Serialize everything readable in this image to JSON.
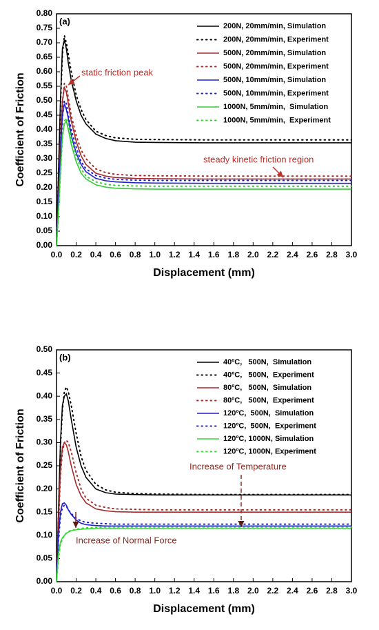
{
  "chart_data": [
    {
      "type": "line",
      "panel_label": "(a)",
      "x_label": "Displacement (mm)",
      "y_label": "Coefficient of Friction",
      "xlim": [
        0,
        3
      ],
      "ylim": [
        0,
        0.8
      ],
      "xticks": [
        {
          "value": 0,
          "label": "0.0"
        },
        {
          "value": 0.2,
          "label": "0.2"
        },
        {
          "value": 0.4,
          "label": "0.4"
        },
        {
          "value": 0.6,
          "label": "0.6"
        },
        {
          "value": 0.8,
          "label": "0.8"
        },
        {
          "value": 1,
          "label": "1.0"
        },
        {
          "value": 1.2,
          "label": "1.2"
        },
        {
          "value": 1.4,
          "label": "1.4"
        },
        {
          "value": 1.6,
          "label": "1.6"
        },
        {
          "value": 1.8,
          "label": "1.8"
        },
        {
          "value": 2,
          "label": "2.0"
        },
        {
          "value": 2.2,
          "label": "2.2"
        },
        {
          "value": 2.4,
          "label": "2.4"
        },
        {
          "value": 2.6,
          "label": "2.6"
        },
        {
          "value": 2.8,
          "label": "2.8"
        },
        {
          "value": 3,
          "label": "3.0"
        }
      ],
      "yticks": [
        {
          "value": 0,
          "label": "0.00"
        },
        {
          "value": 0.05,
          "label": "0.05"
        },
        {
          "value": 0.1,
          "label": "0.10"
        },
        {
          "value": 0.15,
          "label": "0.15"
        },
        {
          "value": 0.2,
          "label": "0.20"
        },
        {
          "value": 0.25,
          "label": "0.25"
        },
        {
          "value": 0.3,
          "label": "0.30"
        },
        {
          "value": 0.35,
          "label": "0.35"
        },
        {
          "value": 0.4,
          "label": "0.40"
        },
        {
          "value": 0.45,
          "label": "0.45"
        },
        {
          "value": 0.5,
          "label": "0.50"
        },
        {
          "value": 0.55,
          "label": "0.55"
        },
        {
          "value": 0.6,
          "label": "0.60"
        },
        {
          "value": 0.65,
          "label": "0.65"
        },
        {
          "value": 0.7,
          "label": "0.70"
        },
        {
          "value": 0.75,
          "label": "0.75"
        },
        {
          "value": 0.8,
          "label": "0.80"
        }
      ],
      "legend": "upper right",
      "x": [
        0,
        0.02,
        0.04,
        0.06,
        0.08,
        0.1,
        0.12,
        0.15,
        0.2,
        0.25,
        0.3,
        0.4,
        0.5,
        0.6,
        0.8,
        1.0,
        1.5,
        2.0,
        2.5,
        3.0
      ],
      "series": [
        {
          "name": "200N, 20mm/min, Simulation",
          "color": "#000000",
          "style": "solid",
          "values": [
            0,
            0.25,
            0.5,
            0.68,
            0.71,
            0.68,
            0.63,
            0.57,
            0.5,
            0.45,
            0.42,
            0.385,
            0.37,
            0.362,
            0.357,
            0.356,
            0.355,
            0.355,
            0.355,
            0.355
          ]
        },
        {
          "name": "200N, 20mm/min, Experiment",
          "color": "#000000",
          "style": "dotted",
          "values": [
            0,
            0.24,
            0.48,
            0.66,
            0.725,
            0.7,
            0.66,
            0.6,
            0.52,
            0.47,
            0.435,
            0.395,
            0.38,
            0.372,
            0.367,
            0.366,
            0.365,
            0.365,
            0.365,
            0.365
          ]
        },
        {
          "name": "500N, 20mm/min, Simulation",
          "color": "#a52a2a",
          "style": "solid",
          "values": [
            0,
            0.18,
            0.36,
            0.5,
            0.545,
            0.53,
            0.49,
            0.43,
            0.36,
            0.31,
            0.28,
            0.25,
            0.24,
            0.235,
            0.232,
            0.231,
            0.23,
            0.23,
            0.23,
            0.23
          ]
        },
        {
          "name": "500N, 20mm/min, Experiment",
          "color": "#a52a2a",
          "style": "dotted",
          "values": [
            0,
            0.17,
            0.35,
            0.49,
            0.56,
            0.55,
            0.51,
            0.45,
            0.38,
            0.33,
            0.3,
            0.265,
            0.252,
            0.246,
            0.242,
            0.241,
            0.24,
            0.24,
            0.24,
            0.24
          ]
        },
        {
          "name": "500N, 10mm/min, Simulation",
          "color": "#1f1fcf",
          "style": "solid",
          "values": [
            0,
            0.16,
            0.32,
            0.45,
            0.49,
            0.47,
            0.44,
            0.38,
            0.32,
            0.28,
            0.255,
            0.232,
            0.224,
            0.22,
            0.217,
            0.216,
            0.215,
            0.215,
            0.215,
            0.215
          ]
        },
        {
          "name": "500N, 10mm/min, Experiment",
          "color": "#1f1fcf",
          "style": "dotted",
          "values": [
            0,
            0.15,
            0.31,
            0.44,
            0.5,
            0.49,
            0.45,
            0.4,
            0.34,
            0.29,
            0.265,
            0.242,
            0.233,
            0.229,
            0.226,
            0.225,
            0.225,
            0.225,
            0.225,
            0.225
          ]
        },
        {
          "name": "1000N, 5mm/min,  Simulation",
          "color": "#33cc33",
          "style": "solid",
          "values": [
            0,
            0.12,
            0.26,
            0.38,
            0.42,
            0.43,
            0.4,
            0.35,
            0.29,
            0.25,
            0.23,
            0.21,
            0.202,
            0.198,
            0.196,
            0.195,
            0.195,
            0.195,
            0.195,
            0.195
          ]
        },
        {
          "name": "1000N, 5mm/min,  Experiment",
          "color": "#33cc33",
          "style": "dotted",
          "values": [
            0,
            0.11,
            0.25,
            0.37,
            0.43,
            0.44,
            0.42,
            0.37,
            0.31,
            0.265,
            0.24,
            0.22,
            0.212,
            0.208,
            0.206,
            0.205,
            0.205,
            0.205,
            0.205,
            0.205
          ]
        }
      ],
      "annotations": [
        {
          "text": "static friction peak",
          "color": "#c0302a"
        },
        {
          "text": "steady kinetic friction region",
          "color": "#c0302a"
        }
      ]
    },
    {
      "type": "line",
      "panel_label": "(b)",
      "x_label": "Displacement (mm)",
      "y_label": "Coefficient of Friction",
      "xlim": [
        0,
        3
      ],
      "ylim": [
        0,
        0.5
      ],
      "xticks": [
        {
          "value": 0,
          "label": "0.0"
        },
        {
          "value": 0.2,
          "label": "0.2"
        },
        {
          "value": 0.4,
          "label": "0.4"
        },
        {
          "value": 0.6,
          "label": "0.6"
        },
        {
          "value": 0.8,
          "label": "0.8"
        },
        {
          "value": 1,
          "label": "1.0"
        },
        {
          "value": 1.2,
          "label": "1.2"
        },
        {
          "value": 1.4,
          "label": "1.4"
        },
        {
          "value": 1.6,
          "label": "1.6"
        },
        {
          "value": 1.8,
          "label": "1.8"
        },
        {
          "value": 2,
          "label": "2.0"
        },
        {
          "value": 2.2,
          "label": "2.2"
        },
        {
          "value": 2.4,
          "label": "2.4"
        },
        {
          "value": 2.6,
          "label": "2.6"
        },
        {
          "value": 2.8,
          "label": "2.8"
        },
        {
          "value": 3,
          "label": "3.0"
        }
      ],
      "yticks": [
        {
          "value": 0,
          "label": "0.00"
        },
        {
          "value": 0.05,
          "label": "0.05"
        },
        {
          "value": 0.1,
          "label": "0.10"
        },
        {
          "value": 0.15,
          "label": "0.15"
        },
        {
          "value": 0.2,
          "label": "0.20"
        },
        {
          "value": 0.25,
          "label": "0.25"
        },
        {
          "value": 0.3,
          "label": "0.30"
        },
        {
          "value": 0.35,
          "label": "0.35"
        },
        {
          "value": 0.4,
          "label": "0.40"
        },
        {
          "value": 0.45,
          "label": "0.45"
        },
        {
          "value": 0.5,
          "label": "0.50"
        }
      ],
      "legend": "upper right",
      "x": [
        0,
        0.02,
        0.04,
        0.06,
        0.08,
        0.1,
        0.12,
        0.15,
        0.2,
        0.25,
        0.3,
        0.4,
        0.5,
        0.6,
        0.8,
        1.0,
        1.5,
        2.0,
        2.5,
        3.0
      ],
      "series": [
        {
          "name": "40ºC,   500N,  Simulation",
          "color": "#000000",
          "style": "solid",
          "values": [
            0,
            0.15,
            0.3,
            0.38,
            0.4,
            0.405,
            0.39,
            0.35,
            0.29,
            0.25,
            0.225,
            0.2,
            0.192,
            0.189,
            0.188,
            0.187,
            0.187,
            0.187,
            0.187,
            0.187
          ]
        },
        {
          "name": "40ºC,   500N,  Experiment",
          "color": "#000000",
          "style": "dotted",
          "values": [
            0,
            0.14,
            0.29,
            0.37,
            0.41,
            0.42,
            0.41,
            0.38,
            0.32,
            0.27,
            0.24,
            0.21,
            0.198,
            0.193,
            0.19,
            0.189,
            0.188,
            0.188,
            0.188,
            0.188
          ]
        },
        {
          "name": "80ºC,   500N,  Simulation",
          "color": "#a52a2a",
          "style": "solid",
          "values": [
            0,
            0.13,
            0.24,
            0.29,
            0.3,
            0.295,
            0.28,
            0.25,
            0.21,
            0.185,
            0.17,
            0.157,
            0.153,
            0.151,
            0.15,
            0.15,
            0.15,
            0.15,
            0.15,
            0.15
          ]
        },
        {
          "name": "80ºC,   500N,  Experiment",
          "color": "#a52a2a",
          "style": "dotted",
          "values": [
            0,
            0.12,
            0.23,
            0.28,
            0.3,
            0.305,
            0.3,
            0.28,
            0.235,
            0.2,
            0.18,
            0.165,
            0.16,
            0.157,
            0.156,
            0.155,
            0.155,
            0.155,
            0.155,
            0.155
          ]
        },
        {
          "name": "120ºC,  500N,  Simulation",
          "color": "#1f1fcf",
          "style": "solid",
          "values": [
            0,
            0.1,
            0.15,
            0.168,
            0.17,
            0.165,
            0.155,
            0.145,
            0.133,
            0.126,
            0.123,
            0.121,
            0.12,
            0.12,
            0.12,
            0.12,
            0.12,
            0.12,
            0.12,
            0.12
          ]
        },
        {
          "name": "120ºC,  500N,  Experiment",
          "color": "#1f1fcf",
          "style": "dotted",
          "values": [
            0,
            0.09,
            0.14,
            0.16,
            0.165,
            0.163,
            0.155,
            0.147,
            0.137,
            0.131,
            0.128,
            0.126,
            0.125,
            0.124,
            0.124,
            0.124,
            0.124,
            0.124,
            0.124,
            0.124
          ]
        },
        {
          "name": "120ºC, 1000N, Simulation",
          "color": "#33dd33",
          "style": "solid",
          "values": [
            0,
            0.06,
            0.085,
            0.095,
            0.1,
            0.104,
            0.107,
            0.11,
            0.112,
            0.113,
            0.114,
            0.115,
            0.115,
            0.115,
            0.115,
            0.115,
            0.115,
            0.115,
            0.115,
            0.115
          ]
        },
        {
          "name": "120ºC, 1000N, Experiment",
          "color": "#33dd33",
          "style": "dotted",
          "values": [
            0,
            0.05,
            0.08,
            0.092,
            0.1,
            0.105,
            0.108,
            0.111,
            0.113,
            0.115,
            0.116,
            0.117,
            0.118,
            0.118,
            0.118,
            0.118,
            0.118,
            0.118,
            0.118,
            0.118
          ]
        }
      ],
      "annotations": [
        {
          "text": "Increase of Temperature",
          "color": "#8b2c22"
        },
        {
          "text": "Increase of Normal Force",
          "color": "#8b2c22"
        }
      ]
    }
  ]
}
